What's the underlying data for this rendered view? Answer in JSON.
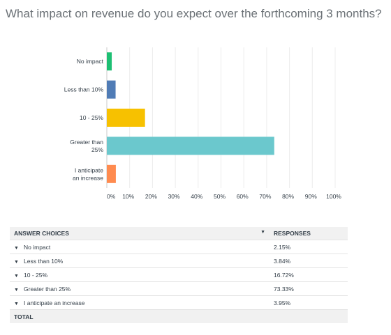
{
  "question": "What impact on revenue do you expect over the forthcoming 3 months?",
  "chart_data": {
    "type": "bar",
    "orientation": "horizontal",
    "categories": [
      [
        "No impact"
      ],
      [
        "Less than 10%"
      ],
      [
        "10 - 25%"
      ],
      [
        "Greater than",
        "25%"
      ],
      [
        "I anticipate",
        "an increase"
      ]
    ],
    "values": [
      2.15,
      3.84,
      16.72,
      73.33,
      3.95
    ],
    "colors": [
      "#1dbf73",
      "#507cb6",
      "#f7c100",
      "#6bc8cd",
      "#ff8b4f"
    ],
    "xlim": [
      0,
      100
    ],
    "x_ticks": [
      "0%",
      "10%",
      "20%",
      "30%",
      "40%",
      "50%",
      "60%",
      "70%",
      "80%",
      "90%",
      "100%"
    ],
    "grid": true,
    "title": "",
    "xlabel": "",
    "ylabel": ""
  },
  "table": {
    "header_choice": "ANSWER CHOICES",
    "header_responses": "RESPONSES",
    "rows": [
      {
        "label": "No impact",
        "value": "2.15%"
      },
      {
        "label": "Less than 10%",
        "value": "3.84%"
      },
      {
        "label": "10 - 25%",
        "value": "16.72%"
      },
      {
        "label": "Greater than 25%",
        "value": "73.33%"
      },
      {
        "label": "I anticipate an increase",
        "value": "3.95%"
      }
    ],
    "total_label": "TOTAL",
    "caret_icon": "▼"
  }
}
